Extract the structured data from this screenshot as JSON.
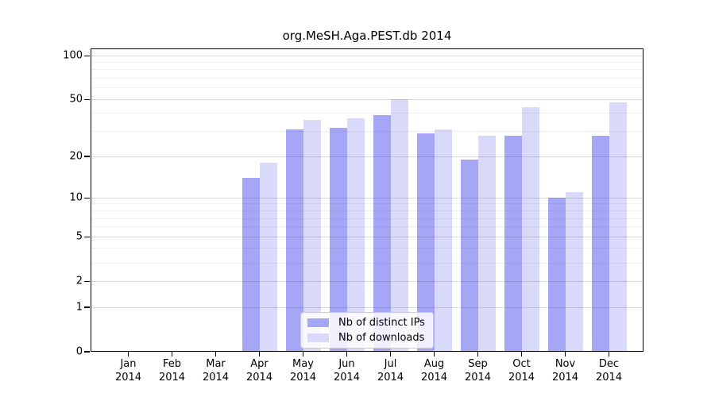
{
  "title": "org.MeSH.Aga.PEST.db 2014",
  "colors": {
    "distinct_ips": "#a6a6f7",
    "downloads": "#d9d9fa",
    "axis": "#000000",
    "grid_major": "rgba(0,0,0,0.14)",
    "grid_minor": "rgba(0,0,0,0.055)",
    "legend_border": "#cbcbcb"
  },
  "chart_data": {
    "type": "bar",
    "title": "org.MeSH.Aga.PEST.db 2014",
    "categories": [
      "Jan",
      "Feb",
      "Mar",
      "Apr",
      "May",
      "Jun",
      "Jul",
      "Aug",
      "Sep",
      "Oct",
      "Nov",
      "Dec"
    ],
    "category_year": "2014",
    "series": [
      {
        "name": "Nb of distinct IPs",
        "color": "#a6a6f7",
        "values": [
          0,
          0,
          0,
          14,
          31,
          32,
          39,
          29,
          19,
          28,
          10,
          28
        ]
      },
      {
        "name": "Nb of downloads",
        "color": "#d9d9fa",
        "values": [
          0,
          0,
          0,
          18,
          36,
          37,
          50,
          31,
          28,
          44,
          11,
          48
        ]
      }
    ],
    "xlabel": "",
    "ylabel": "",
    "yscale": "log(value+1)",
    "ylim": [
      0,
      112
    ],
    "yticks": [
      100,
      50,
      20,
      10,
      5,
      2,
      1,
      0
    ],
    "grid_values": [
      1,
      2,
      3,
      4,
      5,
      6,
      7,
      8,
      9,
      10,
      20,
      30,
      40,
      50,
      60,
      70,
      80,
      90,
      100
    ],
    "major_grid_values": [
      1,
      2,
      5,
      10,
      20,
      50,
      100
    ],
    "grid": true,
    "legend_position": "bottom-center-inside"
  }
}
